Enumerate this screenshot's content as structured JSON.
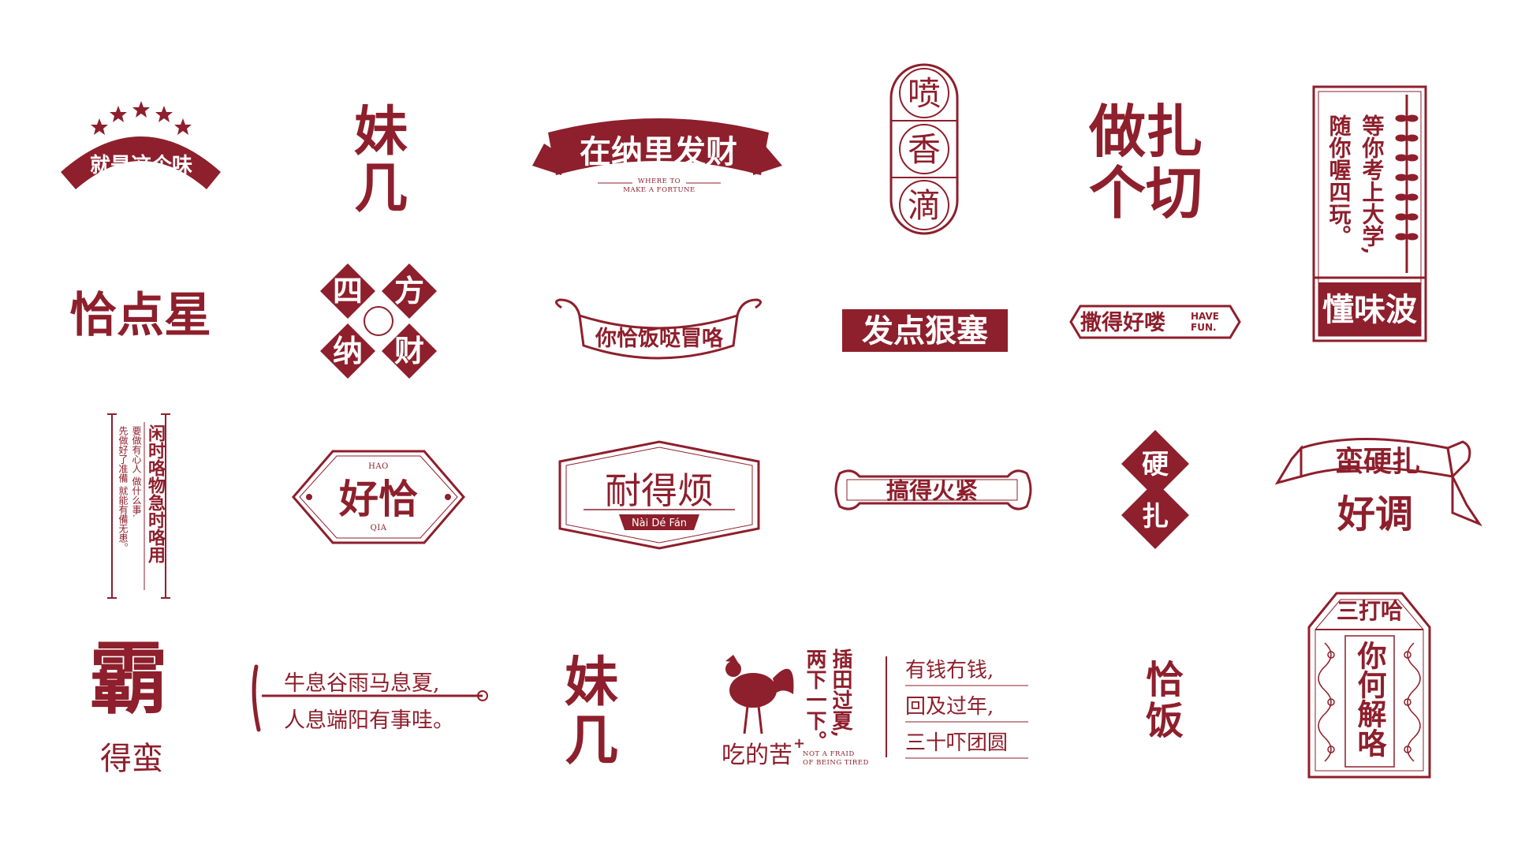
{
  "brand_color": "#8e1f2c",
  "background": "#ffffff",
  "logos": {
    "jiushi": {
      "text": "就是这个味"
    },
    "meier_a": {
      "line1": "妹",
      "line2": "几"
    },
    "zainali": {
      "text": "在纳里发财",
      "en1": "WHERE TO",
      "en2": "MAKE A FORTUNE"
    },
    "penxiang": {
      "c1": "喷",
      "c2": "香",
      "c3": "滴"
    },
    "zuozha": {
      "line1": "做扎",
      "line2": "个切"
    },
    "dengni": {
      "col1": "等你考上大学,",
      "col2": "随你喔四玩。",
      "bottom": "懂味波"
    },
    "qiadian": {
      "text": "恰点星"
    },
    "sifang": {
      "c1": "四",
      "c2": "方",
      "c3": "纳",
      "c4": "财"
    },
    "niqia": {
      "text": "你恰饭哒冒咯"
    },
    "fadian": {
      "text": "发点狠塞"
    },
    "sade": {
      "text": "撒得好喽",
      "en1": "HAVE",
      "en2": "FUN."
    },
    "xianshi": {
      "col1": "闲时咯物急时咯用",
      "col2": "要做有心人 做什么事.",
      "col3": "先做好了准備 就能有備无患。"
    },
    "haoqia": {
      "text": "好恰",
      "en_top": "HAO",
      "en_bottom": "QIA"
    },
    "naide": {
      "text": "耐得烦",
      "en": "Nài Dé Fán"
    },
    "gaode": {
      "text": "搞得火紧"
    },
    "yingzha": {
      "c1": "硬",
      "c2": "扎"
    },
    "manying": {
      "line1": "蛮硬扎",
      "line2": "好调"
    },
    "ba": {
      "big": "霸",
      "small": "得蛮"
    },
    "niuxi": {
      "line1": "牛息谷雨马息夏,",
      "line2": "人息端阳有事哇。"
    },
    "meier_b": {
      "line1": "妹",
      "line2": "几"
    },
    "chadi": {
      "c1": "插田过夏,",
      "c2": "两下一下。",
      "bottom": "吃的苦",
      "plus": "+",
      "en1": "NOT A FRAID",
      "en2": "OF BEING TIRED"
    },
    "youqian": {
      "line1": "有钱冇钱,",
      "line2": "回及过年,",
      "line3": "三十吓团圆"
    },
    "qiafan": {
      "line1": "恰",
      "line2": "饭"
    },
    "sanda": {
      "top": "三打哈",
      "col": "你何解咯"
    }
  }
}
